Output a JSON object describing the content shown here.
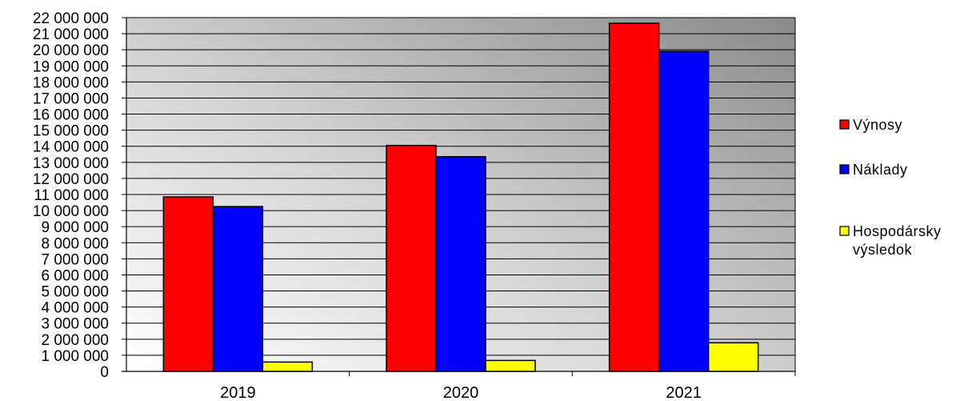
{
  "chart_data": {
    "type": "bar",
    "categories": [
      "2019",
      "2020",
      "2021"
    ],
    "series": [
      {
        "name": "Výnosy",
        "color": "#ff0000",
        "values": [
          10850000,
          14050000,
          21650000
        ]
      },
      {
        "name": "Náklady",
        "color": "#0000ff",
        "values": [
          10250000,
          13350000,
          19900000
        ]
      },
      {
        "name": "Hospodársky výsledok",
        "name_lines": [
          "Hospodársky",
          "výsledok"
        ],
        "color": "#ffff00",
        "values": [
          580000,
          680000,
          1780000
        ]
      }
    ],
    "ylim": [
      0,
      22000000
    ],
    "ytick_step": 1000000,
    "ytick_labels": [
      "0",
      "1 000 000",
      "2 000 000",
      "3 000 000",
      "4 000 000",
      "5 000 000",
      "6 000 000",
      "7 000 000",
      "8 000 000",
      "9 000 000",
      "10 000 000",
      "11 000 000",
      "12 000 000",
      "13 000 000",
      "14 000 000",
      "15 000 000",
      "16 000 000",
      "17 000 000",
      "18 000 000",
      "19 000 000",
      "20 000 000",
      "21 000 000",
      "22 000 000"
    ],
    "title": "",
    "xlabel": "",
    "ylabel": "",
    "grid": true,
    "legend_position": "right",
    "plot_background": "gradient-light-to-dark-gray"
  }
}
